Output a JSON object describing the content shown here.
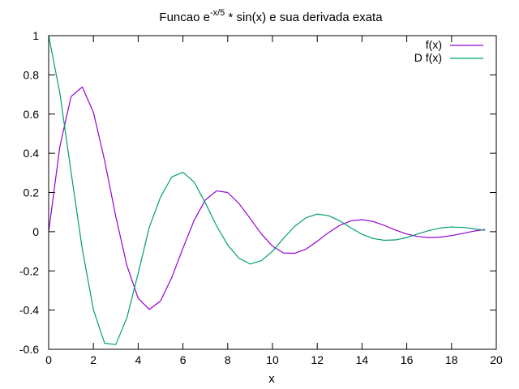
{
  "chart_data": {
    "type": "line",
    "title": {
      "prefix": "Funcao e",
      "superscript": "-x/5",
      "suffix": " * sin(x) e sua derivada exata"
    },
    "xlabel": "x",
    "ylabel": "",
    "xlim": [
      0,
      20
    ],
    "ylim": [
      -0.6,
      1
    ],
    "xticks": [
      0,
      2,
      4,
      6,
      8,
      10,
      12,
      14,
      16,
      18,
      20
    ],
    "yticks": [
      -0.6,
      -0.4,
      -0.2,
      0,
      0.2,
      0.4,
      0.6,
      0.8,
      1
    ],
    "ytick_labels": [
      "-0.6",
      "-0.4",
      "-0.2",
      "0",
      "0.2",
      "0.4",
      "0.6",
      "0.8",
      "1"
    ],
    "grid": false,
    "legend_position": "top-right",
    "x": [
      0,
      0.5,
      1,
      1.5,
      2,
      2.5,
      3,
      3.5,
      4,
      4.5,
      5,
      5.5,
      6,
      6.5,
      7,
      7.5,
      8,
      8.5,
      9,
      9.5,
      10,
      10.5,
      11,
      11.5,
      12,
      12.5,
      13,
      13.5,
      14,
      14.5,
      15,
      15.5,
      16,
      16.5,
      17,
      17.5,
      18,
      18.5,
      19,
      19.5
    ],
    "series": [
      {
        "name": "f(x)",
        "color": "#9400d3",
        "values": [
          0,
          0.434,
          0.689,
          0.738,
          0.609,
          0.363,
          0.077,
          -0.174,
          -0.34,
          -0.397,
          -0.353,
          -0.234,
          -0.084,
          0.058,
          0.162,
          0.208,
          0.2,
          0.144,
          0.068,
          -0.011,
          -0.074,
          -0.109,
          -0.11,
          -0.089,
          -0.049,
          -0.005,
          0.032,
          0.055,
          0.061,
          0.052,
          0.032,
          0.008,
          -0.012,
          -0.025,
          -0.03,
          -0.028,
          -0.02,
          -0.009,
          0.003,
          0.011
        ]
      },
      {
        "name": "D f(x)",
        "color": "#009e73",
        "values": [
          1,
          0.707,
          0.305,
          -0.087,
          -0.398,
          -0.569,
          -0.576,
          -0.438,
          -0.212,
          0.024,
          0.177,
          0.279,
          0.303,
          0.253,
          0.147,
          0.03,
          -0.068,
          -0.135,
          -0.165,
          -0.148,
          -0.1,
          -0.033,
          0.028,
          0.071,
          0.09,
          0.082,
          0.056,
          0.019,
          -0.013,
          -0.035,
          -0.044,
          -0.042,
          -0.03,
          -0.011,
          0.006,
          0.019,
          0.024,
          0.022,
          0.015,
          0.007
        ]
      }
    ]
  }
}
